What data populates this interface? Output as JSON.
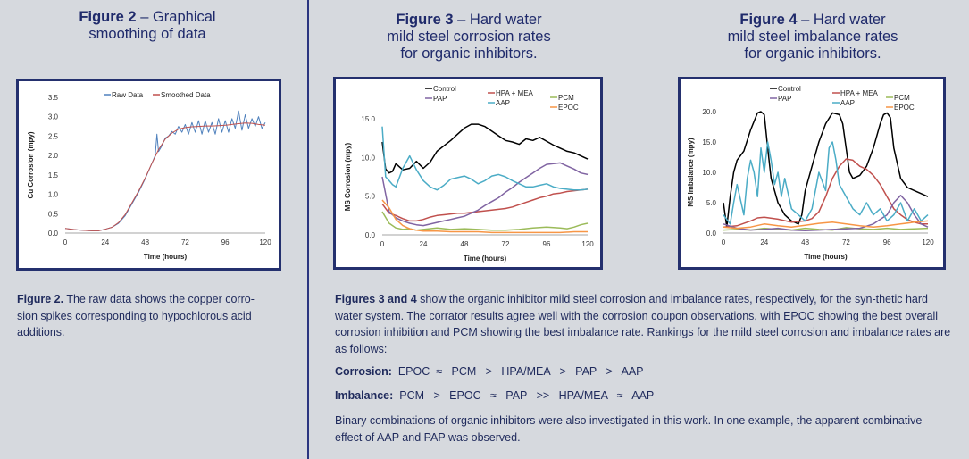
{
  "fig2": {
    "title_bold": "Figure 2",
    "title_rest": " – Graphical",
    "title_line2": "smoothing of data",
    "caption_bold": "Figure 2.",
    "caption_text": " The raw data shows the copper corro-\nsion spikes corresponding to hypochlorous acid\nadditions."
  },
  "fig3": {
    "title_bold": "Figure 3",
    "title_rest": " – Hard water",
    "title_line2": "mild steel corrosion rates",
    "title_line3": "for organic inhibitors."
  },
  "fig4": {
    "title_bold": "Figure 4",
    "title_rest": " – Hard water",
    "title_line2": "mild steel imbalance rates",
    "title_line3": "for organic inhibitors."
  },
  "body": {
    "para1_bold": "Figures 3 and 4",
    "para1_text": " show the organic inhibitor mild steel corrosion and imbalance rates, respectively, for the syn-thetic hard water system. The corrator results agree well with the corrosion coupon observations, with EPOC showing the best overall corrosion inhibition and PCM showing the best imbalance rate. Rankings for the mild steel corrosion and imbalance rates are as follows:",
    "corrosion_label": "Corrosion:",
    "corrosion_rank": "  EPOC  ≈   PCM   >   HPA/MEA   >   PAP   >   AAP",
    "imbalance_label": "Imbalance:",
    "imbalance_rank": "  PCM   >   EPOC   ≈   PAP   >>   HPA/MEA   ≈   AAP",
    "para2": "Binary combinations of organic inhibitors were also investigated in this work. In one example, the apparent combinative effect of AAP and PAP was observed."
  },
  "chart_data": [
    {
      "type": "line",
      "id": "fig2",
      "xlabel": "Time (hours)",
      "ylabel": "Cu Corrosion (mpy)",
      "xlim": [
        0,
        120
      ],
      "ylim": [
        0,
        3.5
      ],
      "xticks": [
        0,
        24,
        48,
        72,
        96,
        120
      ],
      "yticks": [
        0,
        0.5,
        1.0,
        1.5,
        2.0,
        2.5,
        3.0,
        3.5
      ],
      "ytick_labels": [
        "0.0",
        "0.5",
        "1.0",
        "1.5",
        "2.0",
        "2.5",
        "3.0",
        "3.5"
      ],
      "legend_position": "top-center",
      "series": [
        {
          "name": "Raw Data",
          "color": "#4f81bd",
          "x": [
            0,
            4,
            8,
            12,
            16,
            20,
            24,
            28,
            32,
            36,
            40,
            44,
            48,
            50,
            52,
            54,
            55,
            56,
            58,
            60,
            62,
            64,
            66,
            68,
            70,
            72,
            74,
            76,
            78,
            80,
            82,
            84,
            86,
            88,
            90,
            92,
            94,
            96,
            98,
            100,
            102,
            104,
            106,
            108,
            110,
            112,
            114,
            116,
            118,
            120
          ],
          "y": [
            0.12,
            0.1,
            0.08,
            0.07,
            0.06,
            0.06,
            0.1,
            0.15,
            0.25,
            0.45,
            0.75,
            1.05,
            1.4,
            1.6,
            1.8,
            2.0,
            2.55,
            2.1,
            2.25,
            2.45,
            2.5,
            2.62,
            2.55,
            2.75,
            2.6,
            2.8,
            2.55,
            2.85,
            2.6,
            2.9,
            2.55,
            2.9,
            2.6,
            2.85,
            2.55,
            2.95,
            2.6,
            2.9,
            2.6,
            2.95,
            2.7,
            3.15,
            2.65,
            3.05,
            2.7,
            2.95,
            2.75,
            3.0,
            2.7,
            2.85
          ]
        },
        {
          "name": "Smoothed Data",
          "color": "#c0504d",
          "x": [
            0,
            4,
            8,
            12,
            16,
            20,
            24,
            28,
            32,
            36,
            40,
            44,
            48,
            52,
            56,
            60,
            64,
            68,
            72,
            76,
            80,
            84,
            88,
            92,
            96,
            100,
            104,
            108,
            112,
            116,
            120
          ],
          "y": [
            0.12,
            0.1,
            0.08,
            0.07,
            0.06,
            0.06,
            0.1,
            0.15,
            0.27,
            0.48,
            0.78,
            1.08,
            1.42,
            1.8,
            2.15,
            2.42,
            2.58,
            2.68,
            2.72,
            2.74,
            2.75,
            2.76,
            2.76,
            2.77,
            2.78,
            2.8,
            2.82,
            2.84,
            2.83,
            2.8,
            2.78
          ]
        }
      ]
    },
    {
      "type": "line",
      "id": "fig3",
      "xlabel": "Time (hours)",
      "ylabel": "MS Corrosion (mpy)",
      "xlim": [
        0,
        120
      ],
      "ylim": [
        0,
        15
      ],
      "xticks": [
        0,
        24,
        48,
        72,
        96,
        120
      ],
      "yticks": [
        0,
        5,
        10,
        15
      ],
      "ytick_labels": [
        "0.0",
        "5.0",
        "10.0",
        "15.0"
      ],
      "legend_position": "top",
      "series": [
        {
          "name": "Control",
          "color": "#000000",
          "x": [
            0,
            2,
            4,
            6,
            8,
            12,
            16,
            20,
            24,
            28,
            32,
            36,
            40,
            44,
            48,
            52,
            56,
            60,
            64,
            68,
            72,
            76,
            80,
            84,
            88,
            92,
            96,
            100,
            104,
            108,
            112,
            116,
            120
          ],
          "y": [
            12,
            8.5,
            8,
            8.2,
            9.2,
            8.4,
            8.6,
            9.5,
            8.6,
            9.4,
            10.8,
            11.5,
            12.2,
            13,
            13.8,
            14.3,
            14.3,
            14,
            13.4,
            12.8,
            12.2,
            12,
            11.7,
            12.4,
            12.2,
            12.6,
            12.1,
            11.6,
            11.2,
            10.8,
            10.6,
            10.2,
            9.8
          ]
        },
        {
          "name": "HPA + MEA",
          "color": "#c0504d",
          "x": [
            0,
            4,
            8,
            12,
            16,
            20,
            24,
            28,
            32,
            36,
            40,
            44,
            48,
            52,
            56,
            60,
            64,
            68,
            72,
            76,
            80,
            84,
            88,
            92,
            96,
            100,
            104,
            108,
            112,
            116,
            120
          ],
          "y": [
            4,
            2.8,
            2.5,
            2.1,
            1.8,
            1.8,
            2.0,
            2.3,
            2.5,
            2.6,
            2.7,
            2.8,
            2.8,
            2.9,
            3.0,
            3.1,
            3.2,
            3.3,
            3.4,
            3.6,
            3.9,
            4.2,
            4.5,
            4.8,
            5.0,
            5.3,
            5.4,
            5.6,
            5.7,
            5.8,
            5.9
          ]
        },
        {
          "name": "PCM",
          "color": "#9bbb59",
          "x": [
            0,
            4,
            8,
            12,
            16,
            20,
            24,
            32,
            40,
            48,
            56,
            64,
            72,
            80,
            88,
            96,
            104,
            108,
            112,
            116,
            120
          ],
          "y": [
            3,
            1.5,
            0.9,
            0.7,
            0.8,
            0.6,
            0.7,
            0.9,
            0.7,
            0.8,
            0.7,
            0.6,
            0.6,
            0.7,
            0.9,
            1.0,
            0.9,
            0.8,
            1.0,
            1.3,
            1.5
          ]
        },
        {
          "name": "PAP",
          "color": "#8064a2",
          "x": [
            0,
            4,
            8,
            12,
            16,
            20,
            24,
            28,
            32,
            36,
            40,
            44,
            48,
            52,
            56,
            60,
            64,
            68,
            72,
            76,
            80,
            84,
            88,
            92,
            96,
            100,
            104,
            108,
            112,
            116,
            120
          ],
          "y": [
            7.5,
            3,
            2.2,
            1.8,
            1.5,
            1.3,
            1.2,
            1.4,
            1.6,
            1.8,
            2.0,
            2.2,
            2.4,
            2.8,
            3.2,
            3.8,
            4.3,
            4.8,
            5.5,
            6.1,
            6.8,
            7.4,
            8.0,
            8.6,
            9.1,
            9.2,
            9.3,
            8.9,
            8.5,
            8.0,
            7.8
          ]
        },
        {
          "name": "AAP",
          "color": "#4bacc6",
          "x": [
            0,
            2,
            4,
            6,
            8,
            12,
            16,
            20,
            24,
            28,
            32,
            36,
            40,
            44,
            48,
            52,
            56,
            60,
            64,
            68,
            72,
            76,
            80,
            84,
            88,
            92,
            96,
            100,
            104,
            108,
            112,
            116,
            120
          ],
          "y": [
            14,
            7.5,
            7,
            6.5,
            6.2,
            8.6,
            10.2,
            8.4,
            7,
            6.2,
            5.8,
            6.4,
            7.2,
            7.4,
            7.6,
            7.2,
            6.6,
            7.0,
            7.6,
            7.8,
            7.5,
            7.0,
            6.6,
            6.2,
            6.2,
            6.4,
            6.6,
            6.2,
            6.0,
            5.9,
            5.8,
            5.8,
            5.9
          ]
        },
        {
          "name": "EPOC",
          "color": "#f79646",
          "x": [
            0,
            4,
            8,
            12,
            16,
            20,
            24,
            32,
            40,
            48,
            56,
            64,
            72,
            80,
            88,
            96,
            104,
            112,
            120
          ],
          "y": [
            4.5,
            3.5,
            2.0,
            1.2,
            0.8,
            0.6,
            0.5,
            0.5,
            0.4,
            0.4,
            0.4,
            0.3,
            0.3,
            0.3,
            0.3,
            0.3,
            0.3,
            0.4,
            0.4
          ]
        }
      ]
    },
    {
      "type": "line",
      "id": "fig4",
      "xlabel": "Time (hours)",
      "ylabel": "MS Imbalance (mpy)",
      "xlim": [
        0,
        120
      ],
      "ylim": [
        0,
        20
      ],
      "xticks": [
        0,
        24,
        48,
        72,
        96,
        120
      ],
      "yticks": [
        0,
        5,
        10,
        15,
        20
      ],
      "ytick_labels": [
        "0.0",
        "5.0",
        "10.0",
        "15.0",
        "20.0"
      ],
      "legend_position": "top",
      "series": [
        {
          "name": "Control",
          "color": "#000000",
          "x": [
            0,
            2,
            4,
            6,
            8,
            12,
            16,
            20,
            22,
            24,
            26,
            28,
            32,
            36,
            40,
            44,
            46,
            48,
            52,
            56,
            60,
            64,
            68,
            70,
            72,
            74,
            76,
            80,
            84,
            88,
            92,
            94,
            96,
            98,
            100,
            104,
            108,
            112,
            116,
            120
          ],
          "y": [
            5,
            1,
            6,
            10,
            12,
            13.5,
            17,
            19.8,
            20,
            19.5,
            14,
            9,
            5,
            3,
            2,
            1.5,
            3,
            7,
            11,
            15,
            18,
            19.8,
            19.5,
            18,
            14,
            10,
            9,
            9.5,
            11,
            14,
            18,
            19.5,
            19.8,
            19,
            14,
            9,
            7.5,
            7,
            6.5,
            6
          ]
        },
        {
          "name": "HPA + MEA",
          "color": "#c0504d",
          "x": [
            0,
            8,
            16,
            20,
            24,
            32,
            40,
            48,
            52,
            56,
            60,
            64,
            68,
            72,
            76,
            80,
            84,
            88,
            92,
            96,
            100,
            104,
            108,
            112,
            116,
            120
          ],
          "y": [
            1,
            1.2,
            2,
            2.5,
            2.6,
            2.3,
            1.8,
            2,
            2.4,
            3.5,
            6,
            9,
            11,
            12.2,
            12,
            11,
            10.5,
            9.5,
            8,
            6,
            4,
            3,
            2.2,
            1.8,
            1.5,
            1.5
          ]
        },
        {
          "name": "PCM",
          "color": "#9bbb59",
          "x": [
            0,
            8,
            16,
            24,
            32,
            40,
            48,
            56,
            64,
            72,
            80,
            88,
            96,
            104,
            112,
            120
          ],
          "y": [
            0.5,
            0.6,
            0.5,
            0.8,
            0.6,
            0.5,
            0.8,
            0.6,
            0.5,
            0.9,
            0.7,
            0.6,
            0.8,
            0.6,
            0.7,
            0.8
          ]
        },
        {
          "name": "PAP",
          "color": "#8064a2",
          "x": [
            0,
            8,
            16,
            24,
            32,
            40,
            48,
            56,
            64,
            72,
            80,
            88,
            96,
            100,
            104,
            108,
            112,
            116,
            120
          ],
          "y": [
            1.5,
            0.8,
            0.5,
            0.6,
            0.8,
            0.5,
            0.4,
            0.5,
            0.6,
            0.7,
            0.8,
            1.5,
            3,
            5,
            6.2,
            5,
            3,
            1.5,
            1
          ]
        },
        {
          "name": "AAP",
          "color": "#4bacc6",
          "x": [
            0,
            4,
            6,
            8,
            12,
            14,
            16,
            18,
            20,
            22,
            24,
            26,
            28,
            30,
            32,
            34,
            36,
            40,
            44,
            48,
            52,
            56,
            60,
            62,
            64,
            66,
            68,
            72,
            76,
            80,
            84,
            88,
            92,
            96,
            100,
            104,
            108,
            112,
            116,
            120
          ],
          "y": [
            3,
            1.5,
            5,
            8,
            3,
            9,
            12,
            10,
            6,
            14,
            10,
            15,
            12,
            8,
            10,
            6,
            9,
            4,
            3,
            2,
            4,
            10,
            7,
            14,
            15,
            12,
            8,
            6,
            4,
            3,
            5,
            3,
            4,
            2,
            3,
            5,
            2,
            4,
            2,
            3
          ]
        },
        {
          "name": "EPOC",
          "color": "#f79646",
          "x": [
            0,
            8,
            16,
            24,
            32,
            40,
            48,
            56,
            64,
            72,
            80,
            88,
            96,
            104,
            112,
            120
          ],
          "y": [
            1,
            0.8,
            1.0,
            1.5,
            1.2,
            1.0,
            1.3,
            1.6,
            1.8,
            1.5,
            1.2,
            1.0,
            1.2,
            1.5,
            1.8,
            2.0
          ]
        }
      ]
    }
  ]
}
